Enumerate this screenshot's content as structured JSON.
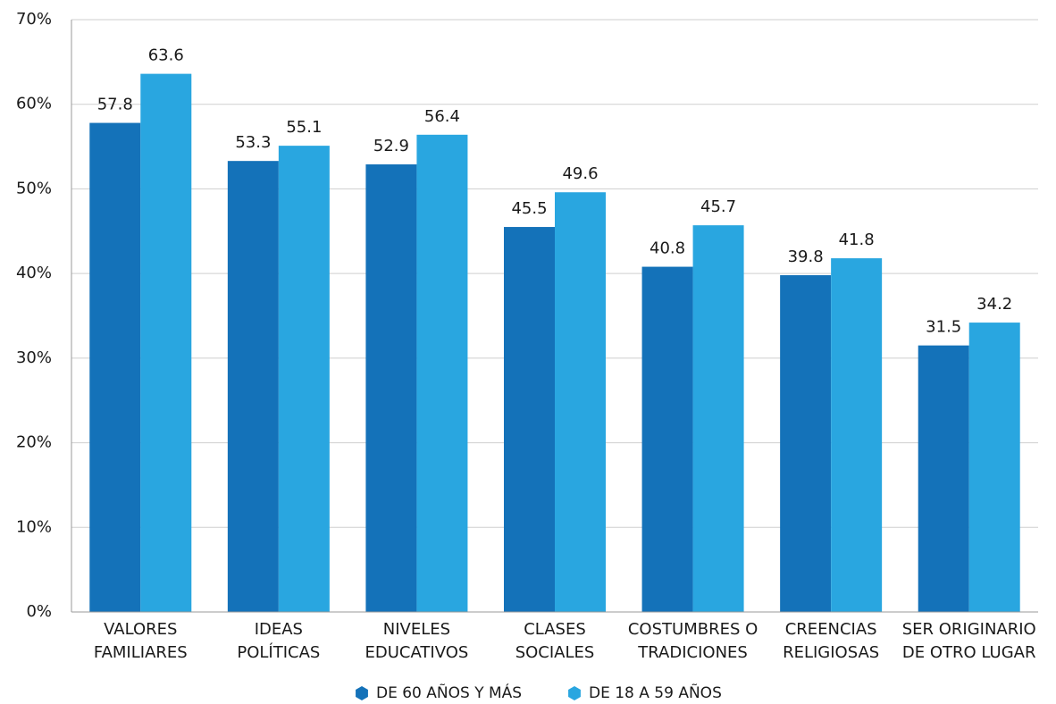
{
  "chart_data": {
    "type": "bar",
    "categories": [
      [
        "VALORES",
        "FAMILIARES"
      ],
      [
        "IDEAS",
        "POLÍTICAS"
      ],
      [
        "NIVELES",
        "EDUCATIVOS"
      ],
      [
        "CLASES",
        "SOCIALES"
      ],
      [
        "COSTUMBRES O",
        "TRADICIONES"
      ],
      [
        "CREENCIAS",
        "RELIGIOSAS"
      ],
      [
        "SER ORIGINARIO",
        "DE OTRO LUGAR"
      ]
    ],
    "series": [
      {
        "name": "DE 60 AÑOS Y MÁS",
        "color": "#1472b9",
        "values": [
          57.8,
          53.3,
          52.9,
          45.5,
          40.8,
          39.8,
          31.5
        ]
      },
      {
        "name": "DE 18 A 59 AÑOS",
        "color": "#29a6e0",
        "values": [
          63.6,
          55.1,
          56.4,
          49.6,
          45.7,
          41.8,
          34.2
        ]
      }
    ],
    "ylim": [
      0,
      70
    ],
    "yticks": [
      {
        "value": 0,
        "label": "0%"
      },
      {
        "value": 10,
        "label": "10%"
      },
      {
        "value": 20,
        "label": "20%"
      },
      {
        "value": 30,
        "label": "30%"
      },
      {
        "value": 40,
        "label": "40%"
      },
      {
        "value": 50,
        "label": "50%"
      },
      {
        "value": 60,
        "label": "60%"
      },
      {
        "value": 70,
        "label": "70%"
      }
    ],
    "grid": true,
    "legend": "bottom"
  }
}
